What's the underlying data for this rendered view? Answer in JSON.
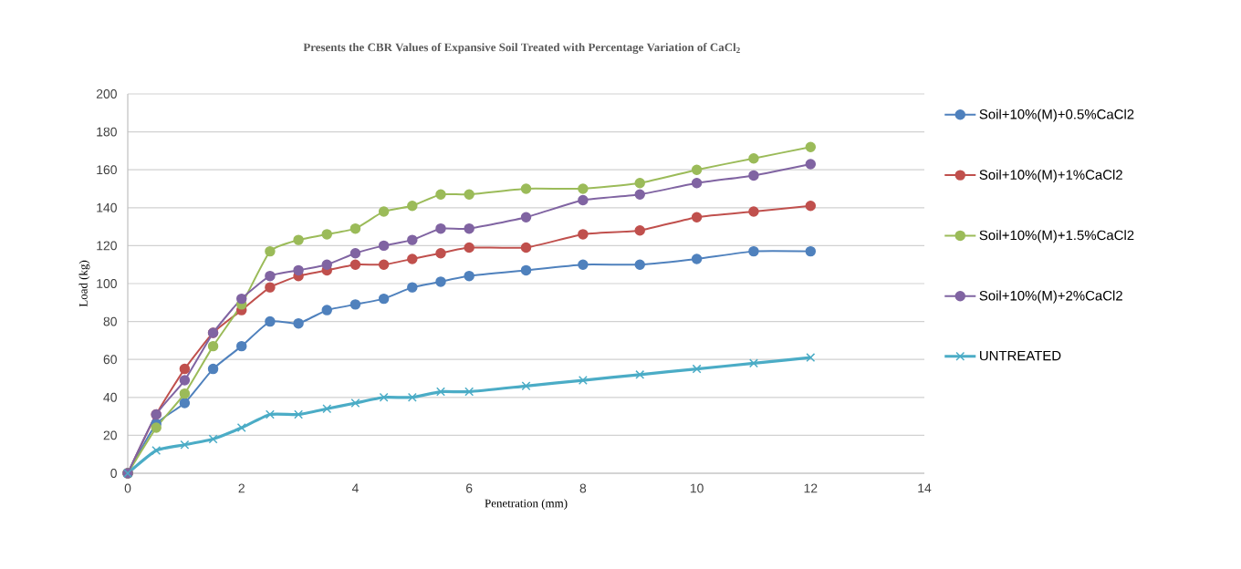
{
  "chart_data": {
    "type": "line",
    "title": "Presents the CBR Values of Expansive Soil Treated with Percentage Variation of CaCl$_{2}$",
    "xlabel": "Penetration (mm)",
    "ylabel": "Load (kg)",
    "x": [
      0,
      0.5,
      1,
      1.5,
      2,
      2.5,
      3,
      3.5,
      4,
      4.5,
      5,
      5.5,
      6,
      7,
      8,
      9,
      10,
      11,
      12
    ],
    "series": [
      {
        "name": "Soil+10%(M)+0.5%CaCl2",
        "color": "#4f81bd",
        "marker": "circle",
        "values": [
          0,
          26,
          37,
          55,
          67,
          80,
          79,
          86,
          89,
          92,
          98,
          101,
          104,
          107,
          110,
          110,
          113,
          117,
          117
        ]
      },
      {
        "name": "Soil+10%(M)+1%CaCl2",
        "color": "#c0504d",
        "marker": "circle",
        "values": [
          0,
          31,
          55,
          74,
          86,
          98,
          104,
          107,
          110,
          110,
          113,
          116,
          119,
          119,
          126,
          128,
          135,
          138,
          141
        ]
      },
      {
        "name": "Soil+10%(M)+1.5%CaCl2",
        "color": "#9bbb59",
        "marker": "circle",
        "values": [
          0,
          24,
          42,
          67,
          89,
          117,
          123,
          126,
          129,
          138,
          141,
          147,
          147,
          150,
          150,
          153,
          160,
          166,
          172
        ]
      },
      {
        "name": "Soil+10%(M)+2%CaCl2",
        "color": "#8064a2",
        "marker": "circle",
        "values": [
          0,
          31,
          49,
          74,
          92,
          104,
          107,
          110,
          116,
          120,
          123,
          129,
          129,
          135,
          144,
          147,
          153,
          157,
          163
        ]
      },
      {
        "name": "UNTREATED",
        "color": "#4bacc6",
        "marker": "cross",
        "values": [
          0,
          12,
          15,
          18,
          24,
          31,
          31,
          34,
          37,
          40,
          40,
          43,
          43,
          46,
          49,
          52,
          55,
          58,
          61
        ]
      }
    ],
    "xlim": [
      0,
      14
    ],
    "xticks": [
      0,
      2,
      4,
      6,
      8,
      10,
      12,
      14
    ],
    "ylim": [
      0,
      200
    ],
    "yticks": [
      0,
      20,
      40,
      60,
      80,
      100,
      120,
      140,
      160,
      180,
      200
    ],
    "grid": "y",
    "legend": "right",
    "line_style": "solid"
  }
}
